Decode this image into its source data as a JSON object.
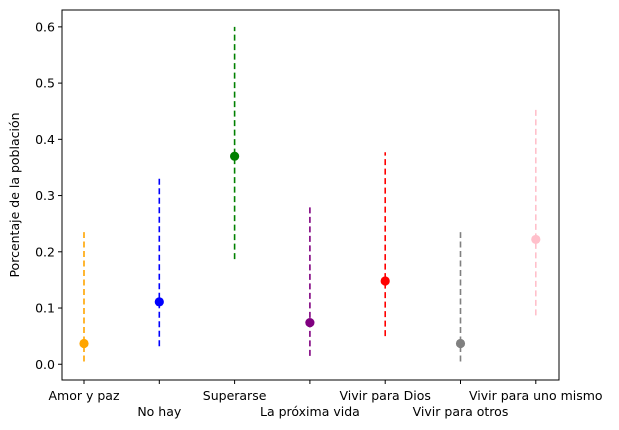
{
  "chart_data": {
    "type": "scatter",
    "title": "",
    "xlabel": "",
    "ylabel": "Porcentaje de la población",
    "ylim": [
      -0.028,
      0.63
    ],
    "yticks": [
      0.0,
      0.1,
      0.2,
      0.3,
      0.4,
      0.5,
      0.6
    ],
    "ytick_labels": [
      "0.0",
      "0.1",
      "0.2",
      "0.3",
      "0.4",
      "0.5",
      "0.6"
    ],
    "grid": false,
    "categories": [
      "Amor y paz",
      "No hay",
      "Superarse",
      "La próxima vida",
      "Vivir para Dios",
      "Vivir para otros",
      "Vivir para uno mismo"
    ],
    "points": [
      {
        "category": "Amor y paz",
        "value": 0.037,
        "low": 0.005,
        "high": 0.235,
        "color": "#ffa500"
      },
      {
        "category": "No hay",
        "value": 0.111,
        "low": 0.032,
        "high": 0.333,
        "color": "#0000ff"
      },
      {
        "category": "Superarse",
        "value": 0.37,
        "low": 0.187,
        "high": 0.6,
        "color": "#008000"
      },
      {
        "category": "La próxima vida",
        "value": 0.074,
        "low": 0.015,
        "high": 0.283,
        "color": "#800080"
      },
      {
        "category": "Vivir para Dios",
        "value": 0.148,
        "low": 0.05,
        "high": 0.377,
        "color": "#ff0000"
      },
      {
        "category": "Vivir para otros",
        "value": 0.037,
        "low": 0.005,
        "high": 0.235,
        "color": "#808080"
      },
      {
        "category": "Vivir para uno mismo",
        "value": 0.222,
        "low": 0.087,
        "high": 0.455,
        "color": "#ffc0cb"
      }
    ]
  }
}
